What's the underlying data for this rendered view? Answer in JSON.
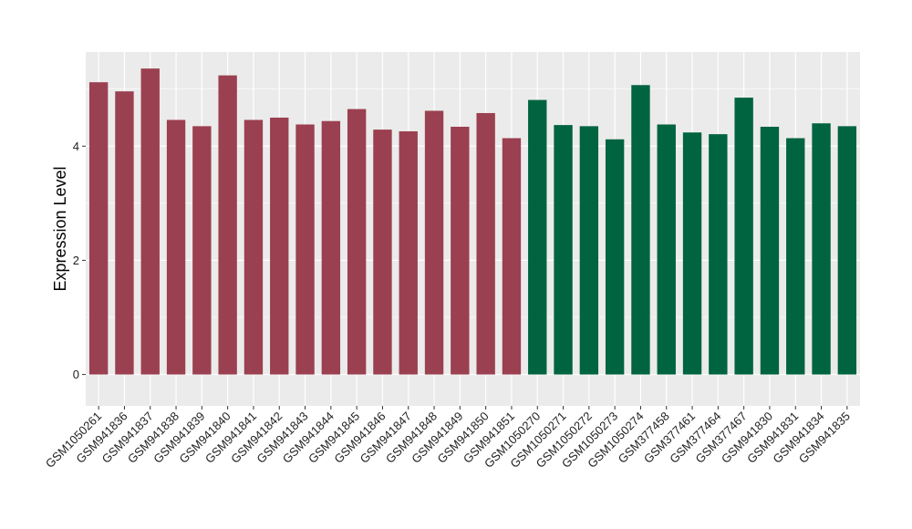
{
  "chart_data": {
    "type": "bar",
    "title": "",
    "xlabel": "",
    "ylabel": "Expression Level",
    "ylim": [
      -0.55,
      5.65
    ],
    "yticks": [
      0,
      2,
      4
    ],
    "grid": true,
    "legend": "none",
    "categories": [
      "GSM1050261",
      "GSM941836",
      "GSM941837",
      "GSM941838",
      "GSM941839",
      "GSM941840",
      "GSM941841",
      "GSM941842",
      "GSM941843",
      "GSM941844",
      "GSM941845",
      "GSM941846",
      "GSM941847",
      "GSM941848",
      "GSM941849",
      "GSM941850",
      "GSM941851",
      "GSM1050270",
      "GSM1050271",
      "GSM1050272",
      "GSM1050273",
      "GSM1050274",
      "GSM377458",
      "GSM377461",
      "GSM377464",
      "GSM377467",
      "GSM941830",
      "GSM941831",
      "GSM941834",
      "GSM941835"
    ],
    "values": [
      5.12,
      4.96,
      5.36,
      4.46,
      4.35,
      5.24,
      4.46,
      4.5,
      4.38,
      4.44,
      4.65,
      4.29,
      4.26,
      4.62,
      4.34,
      4.58,
      4.14,
      4.81,
      4.37,
      4.35,
      4.12,
      5.07,
      4.38,
      4.24,
      4.21,
      4.85,
      4.34,
      4.14,
      4.4,
      4.35
    ],
    "groups": [
      0,
      0,
      0,
      0,
      0,
      0,
      0,
      0,
      0,
      0,
      0,
      0,
      0,
      0,
      0,
      0,
      0,
      1,
      1,
      1,
      1,
      1,
      1,
      1,
      1,
      1,
      1,
      1,
      1,
      1
    ],
    "colors": [
      "#9b4050",
      "#006440"
    ],
    "panel_color": "#ebebeb",
    "grid_color": "#ffffff"
  }
}
